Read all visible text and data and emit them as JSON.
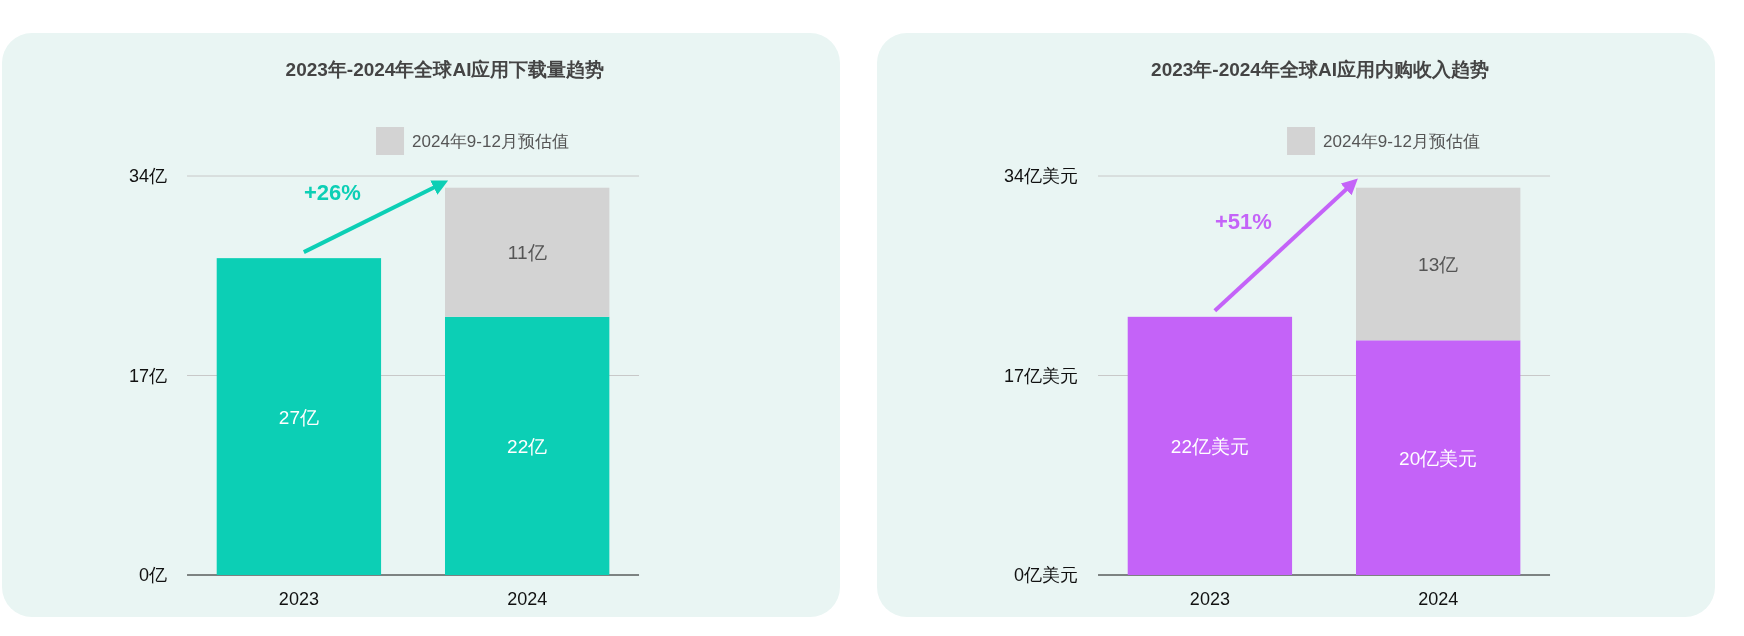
{
  "chart_data": [
    {
      "type": "bar",
      "title": "2023年-2024年全球AI应用下载量趋势",
      "categories": [
        "2023",
        "2024"
      ],
      "stacked": true,
      "grid": "y",
      "legend": "top right",
      "annotations": [
        "+26%"
      ],
      "ylim": [
        0,
        34
      ],
      "yticks": [
        {
          "value": 0,
          "label": "0亿"
        },
        {
          "value": 17,
          "label": "17亿"
        },
        {
          "value": 34,
          "label": "34亿"
        }
      ],
      "series": [
        {
          "color": "#0ccfb5",
          "values": [
            27,
            22
          ],
          "value_labels": [
            "27亿",
            "22亿"
          ]
        },
        {
          "name": "2024年9-12月预估值",
          "color": "#d3d3d3",
          "values": [
            null,
            11
          ],
          "value_labels": [
            null,
            "11亿"
          ]
        }
      ]
    },
    {
      "type": "bar",
      "title": "2023年-2024年全球AI应用内购收入趋势",
      "categories": [
        "2023",
        "2024"
      ],
      "stacked": true,
      "grid": "y",
      "legend": "top right",
      "annotations": [
        "+51%"
      ],
      "ylim": [
        0,
        34
      ],
      "yticks": [
        {
          "value": 0,
          "label": "0亿美元"
        },
        {
          "value": 17,
          "label": "17亿美元"
        },
        {
          "value": 34,
          "label": "34亿美元"
        }
      ],
      "series": [
        {
          "color": "#c463f8",
          "values": [
            22,
            20
          ],
          "value_labels": [
            "22亿美元",
            "20亿美元"
          ]
        },
        {
          "name": "2024年9-12月预估值",
          "color": "#d3d3d3",
          "values": [
            null,
            13
          ],
          "value_labels": [
            null,
            "13亿"
          ]
        }
      ]
    }
  ]
}
